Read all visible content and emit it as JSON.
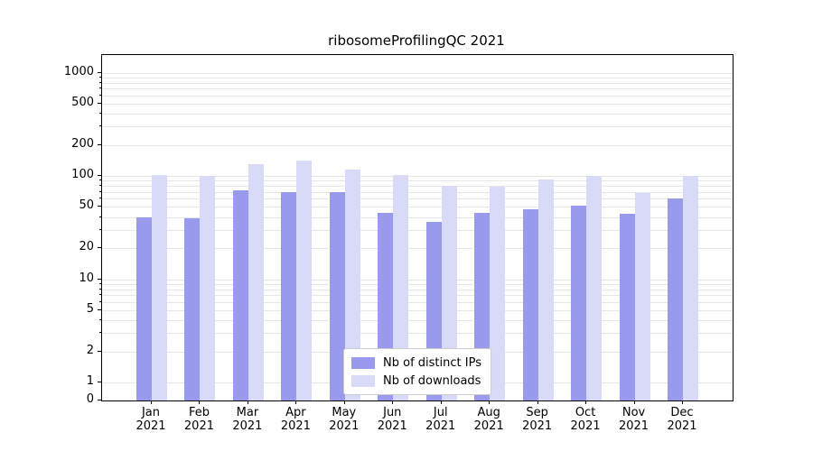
{
  "chart_data": {
    "type": "bar",
    "title": "ribosomeProfilingQC 2021",
    "categories": [
      "Jan",
      "Feb",
      "Mar",
      "Apr",
      "May",
      "Jun",
      "Jul",
      "Aug",
      "Sep",
      "Oct",
      "Nov",
      "Dec"
    ],
    "category_year": "2021",
    "series": [
      {
        "name": "Nb of distinct IPs",
        "color": "#9999ee",
        "values": [
          40,
          39,
          72,
          70,
          70,
          44,
          36,
          44,
          48,
          51,
          43,
          60
        ]
      },
      {
        "name": "Nb of downloads",
        "color": "#d9d9f8",
        "values": [
          103,
          100,
          130,
          140,
          115,
          102,
          80,
          78,
          92,
          100,
          68,
          100
        ]
      }
    ],
    "yscale": "symlog",
    "yticks": [
      1000,
      500,
      200,
      100,
      50,
      20,
      10,
      5,
      2,
      1,
      0
    ],
    "ylim": [
      0,
      1500
    ],
    "grid": true,
    "legend_position": "lower center"
  }
}
